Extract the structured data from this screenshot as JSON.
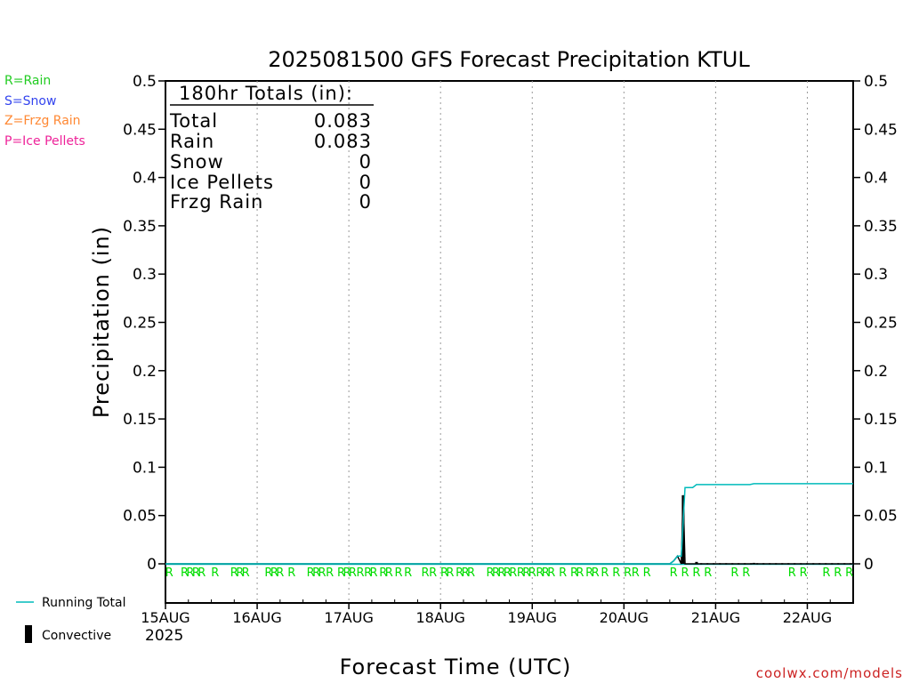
{
  "chart_data": {
    "type": "line",
    "title": "2025081500 GFS Forecast Precipitation KTUL",
    "xlabel": "Forecast Time (UTC)",
    "ylabel": "Precipitation (in)",
    "x_unit": "forecast hour",
    "xlim": [
      0,
      180
    ],
    "ylim": [
      0,
      0.5
    ],
    "x_ticks": [
      {
        "hour": 0,
        "label": "15AUG"
      },
      {
        "hour": 24,
        "label": "16AUG"
      },
      {
        "hour": 48,
        "label": "17AUG"
      },
      {
        "hour": 72,
        "label": "18AUG"
      },
      {
        "hour": 96,
        "label": "19AUG"
      },
      {
        "hour": 120,
        "label": "20AUG"
      },
      {
        "hour": 144,
        "label": "21AUG"
      },
      {
        "hour": 168,
        "label": "22AUG"
      }
    ],
    "year_label": "2025",
    "y_ticks": [
      "0",
      "0.05",
      "0.1",
      "0.15",
      "0.2",
      "0.25",
      "0.3",
      "0.35",
      "0.4",
      "0.45",
      "0.5"
    ],
    "grid": "vertical dotted",
    "precip_type_legend": [
      {
        "text": "R=Rain",
        "color": "#22cc22"
      },
      {
        "text": "S=Snow",
        "color": "#3344ee"
      },
      {
        "text": "Z=Frzg Rain",
        "color": "#ff8833"
      },
      {
        "text": "P=Ice Pellets",
        "color": "#ee2299"
      }
    ],
    "series_legend": [
      {
        "name": "Running Total",
        "color": "#00bbbb",
        "style": "line"
      },
      {
        "name": "Convective",
        "color": "#000000",
        "style": "bar"
      }
    ],
    "totals_box": {
      "header": "180hr Totals (in):",
      "rows": [
        {
          "label": "Total",
          "value": "0.083"
        },
        {
          "label": "Rain",
          "value": "0.083"
        },
        {
          "label": "Snow",
          "value": "0"
        },
        {
          "label": "Ice Pellets",
          "value": "0"
        },
        {
          "label": "Frzg Rain",
          "value": "0"
        }
      ]
    },
    "running_total": {
      "name": "Running Total",
      "color": "#00bbbb",
      "points": [
        [
          0,
          0
        ],
        [
          132,
          0
        ],
        [
          133,
          0.003
        ],
        [
          134,
          0.008
        ],
        [
          135,
          0.008
        ],
        [
          136,
          0.079
        ],
        [
          138,
          0.079
        ],
        [
          139,
          0.082
        ],
        [
          153,
          0.082
        ],
        [
          154,
          0.083
        ],
        [
          180,
          0.083
        ]
      ]
    },
    "precipitation": {
      "name": "Precipitation",
      "color": "#000000",
      "points": [
        [
          0,
          0
        ],
        [
          132,
          0
        ],
        [
          133,
          0.003
        ],
        [
          134,
          0.008
        ],
        [
          135,
          0
        ],
        [
          135.5,
          0.071
        ],
        [
          136,
          0
        ],
        [
          180,
          0
        ]
      ]
    },
    "convective_bars": [
      {
        "hour": 135.5,
        "value": 0.071
      },
      {
        "hour": 139,
        "value": 0.002
      },
      {
        "hour": 154,
        "value": 0.001
      }
    ],
    "precip_type_markers": [
      {
        "hour": 1,
        "label": "R"
      },
      {
        "hour": 5,
        "label": "R"
      },
      {
        "hour": 6.5,
        "label": "R"
      },
      {
        "hour": 8,
        "label": "R"
      },
      {
        "hour": 9.5,
        "label": "R"
      },
      {
        "hour": 13,
        "label": "R"
      },
      {
        "hour": 18,
        "label": "R"
      },
      {
        "hour": 19.5,
        "label": "R"
      },
      {
        "hour": 21,
        "label": "R"
      },
      {
        "hour": 27,
        "label": "R"
      },
      {
        "hour": 28.5,
        "label": "R"
      },
      {
        "hour": 30,
        "label": "R"
      },
      {
        "hour": 33,
        "label": "R"
      },
      {
        "hour": 38,
        "label": "R"
      },
      {
        "hour": 39.5,
        "label": "R"
      },
      {
        "hour": 41,
        "label": "R"
      },
      {
        "hour": 43,
        "label": "R"
      },
      {
        "hour": 46,
        "label": "R"
      },
      {
        "hour": 47.5,
        "label": "R"
      },
      {
        "hour": 49,
        "label": "R"
      },
      {
        "hour": 51,
        "label": "R"
      },
      {
        "hour": 53,
        "label": "R"
      },
      {
        "hour": 54.5,
        "label": "R"
      },
      {
        "hour": 57,
        "label": "R"
      },
      {
        "hour": 58.5,
        "label": "R"
      },
      {
        "hour": 61,
        "label": "R"
      },
      {
        "hour": 63.5,
        "label": "R"
      },
      {
        "hour": 68,
        "label": "R"
      },
      {
        "hour": 70,
        "label": "R"
      },
      {
        "hour": 73,
        "label": "R"
      },
      {
        "hour": 74.5,
        "label": "R"
      },
      {
        "hour": 77,
        "label": "R"
      },
      {
        "hour": 78.5,
        "label": "R"
      },
      {
        "hour": 80,
        "label": "R"
      },
      {
        "hour": 85,
        "label": "R"
      },
      {
        "hour": 86.5,
        "label": "R"
      },
      {
        "hour": 88,
        "label": "R"
      },
      {
        "hour": 89.5,
        "label": "R"
      },
      {
        "hour": 91,
        "label": "R"
      },
      {
        "hour": 93,
        "label": "R"
      },
      {
        "hour": 94.5,
        "label": "R"
      },
      {
        "hour": 96,
        "label": "R"
      },
      {
        "hour": 98,
        "label": "R"
      },
      {
        "hour": 99.5,
        "label": "R"
      },
      {
        "hour": 101,
        "label": "R"
      },
      {
        "hour": 104,
        "label": "R"
      },
      {
        "hour": 107,
        "label": "R"
      },
      {
        "hour": 108.5,
        "label": "R"
      },
      {
        "hour": 111,
        "label": "R"
      },
      {
        "hour": 112.5,
        "label": "R"
      },
      {
        "hour": 115,
        "label": "R"
      },
      {
        "hour": 118,
        "label": "R"
      },
      {
        "hour": 121,
        "label": "R"
      },
      {
        "hour": 123,
        "label": "R"
      },
      {
        "hour": 126,
        "label": "R"
      },
      {
        "hour": 133,
        "label": "R"
      },
      {
        "hour": 136,
        "label": "R"
      },
      {
        "hour": 139,
        "label": "R"
      },
      {
        "hour": 142,
        "label": "R"
      },
      {
        "hour": 149,
        "label": "R"
      },
      {
        "hour": 152,
        "label": "R"
      },
      {
        "hour": 164,
        "label": "R"
      },
      {
        "hour": 167,
        "label": "R"
      },
      {
        "hour": 173,
        "label": "R"
      },
      {
        "hour": 176,
        "label": "R"
      },
      {
        "hour": 179,
        "label": "R"
      }
    ],
    "credit": "coolwx.com/models"
  }
}
